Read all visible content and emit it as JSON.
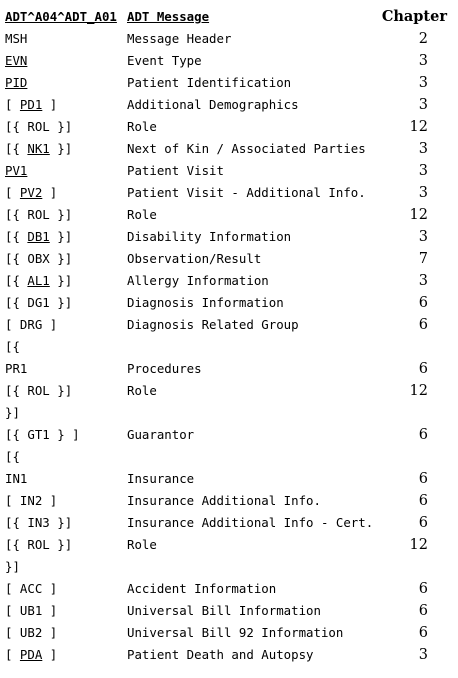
{
  "header": {
    "message_type": "ADT^A04^ADT_A01",
    "description": "ADT Message",
    "chapter": "Chapter"
  },
  "rows": [
    {
      "pre": "",
      "seg": "MSH",
      "post": "",
      "linked": false,
      "desc": "Message Header",
      "chapter": "2"
    },
    {
      "pre": "",
      "seg": "EVN",
      "post": "",
      "linked": true,
      "desc": "Event Type",
      "chapter": "3"
    },
    {
      "pre": "",
      "seg": "PID",
      "post": "",
      "linked": true,
      "desc": "Patient Identification",
      "chapter": "3"
    },
    {
      "pre": "[ ",
      "seg": "PD1",
      "post": " ]",
      "linked": true,
      "desc": "Additional Demographics",
      "chapter": "3"
    },
    {
      "pre": "[{ ",
      "seg": "ROL",
      "post": " }]",
      "linked": false,
      "desc": "Role",
      "chapter": "12"
    },
    {
      "pre": "[{ ",
      "seg": "NK1",
      "post": " }]",
      "linked": true,
      "desc": "Next of Kin / Associated Parties",
      "chapter": "3"
    },
    {
      "pre": "",
      "seg": "PV1",
      "post": "",
      "linked": true,
      "desc": "Patient Visit",
      "chapter": "3"
    },
    {
      "pre": "[ ",
      "seg": "PV2",
      "post": " ]",
      "linked": true,
      "desc": "Patient Visit - Additional Info.",
      "chapter": "3"
    },
    {
      "pre": "[{ ",
      "seg": "ROL",
      "post": " }]",
      "linked": false,
      "desc": "Role",
      "chapter": "12"
    },
    {
      "pre": "[{ ",
      "seg": "DB1",
      "post": " }]",
      "linked": true,
      "desc": "Disability Information",
      "chapter": "3"
    },
    {
      "pre": "[{ ",
      "seg": "OBX",
      "post": " }]",
      "linked": false,
      "desc": "Observation/Result",
      "chapter": "7"
    },
    {
      "pre": "[{ ",
      "seg": "AL1",
      "post": " }]",
      "linked": true,
      "desc": "Allergy Information",
      "chapter": "3"
    },
    {
      "pre": "[{ ",
      "seg": "DG1",
      "post": " }]",
      "linked": false,
      "desc": "Diagnosis Information",
      "chapter": "6"
    },
    {
      "pre": "[ ",
      "seg": "DRG",
      "post": " ]",
      "linked": false,
      "desc": "Diagnosis Related Group",
      "chapter": "6"
    },
    {
      "pre": "[{",
      "seg": "",
      "post": "",
      "linked": false,
      "desc": "",
      "chapter": ""
    },
    {
      "pre": "",
      "seg": "PR1",
      "post": "",
      "linked": false,
      "desc": "Procedures",
      "chapter": "6"
    },
    {
      "pre": "[{ ",
      "seg": "ROL",
      "post": " }]",
      "linked": false,
      "desc": "Role",
      "chapter": "12"
    },
    {
      "pre": "}]",
      "seg": "",
      "post": "",
      "linked": false,
      "desc": "",
      "chapter": ""
    },
    {
      "pre": "[{ ",
      "seg": "GT1",
      "post": " } ]",
      "linked": false,
      "desc": "Guarantor",
      "chapter": "6"
    },
    {
      "pre": "[{",
      "seg": "",
      "post": "",
      "linked": false,
      "desc": "",
      "chapter": ""
    },
    {
      "pre": "",
      "seg": "IN1",
      "post": "",
      "linked": false,
      "desc": "Insurance",
      "chapter": "6"
    },
    {
      "pre": "[ ",
      "seg": "IN2",
      "post": " ]",
      "linked": false,
      "desc": "Insurance Additional Info.",
      "chapter": "6"
    },
    {
      "pre": "[{ ",
      "seg": "IN3",
      "post": " }]",
      "linked": false,
      "desc": "Insurance Additional Info - Cert.",
      "chapter": "6"
    },
    {
      "pre": "[{ ",
      "seg": "ROL",
      "post": " }]",
      "linked": false,
      "desc": "Role",
      "chapter": "12"
    },
    {
      "pre": "}]",
      "seg": "",
      "post": "",
      "linked": false,
      "desc": "",
      "chapter": ""
    },
    {
      "pre": "[ ",
      "seg": "ACC",
      "post": " ]",
      "linked": false,
      "desc": "Accident Information",
      "chapter": "6"
    },
    {
      "pre": "[ ",
      "seg": "UB1",
      "post": " ]",
      "linked": false,
      "desc": "Universal Bill Information",
      "chapter": "6"
    },
    {
      "pre": "[ ",
      "seg": "UB2",
      "post": " ]",
      "linked": false,
      "desc": "Universal Bill 92 Information",
      "chapter": "6"
    },
    {
      "pre": "[ ",
      "seg": "PDA",
      "post": " ]",
      "linked": true,
      "desc": "Patient Death and Autopsy",
      "chapter": "3"
    }
  ]
}
